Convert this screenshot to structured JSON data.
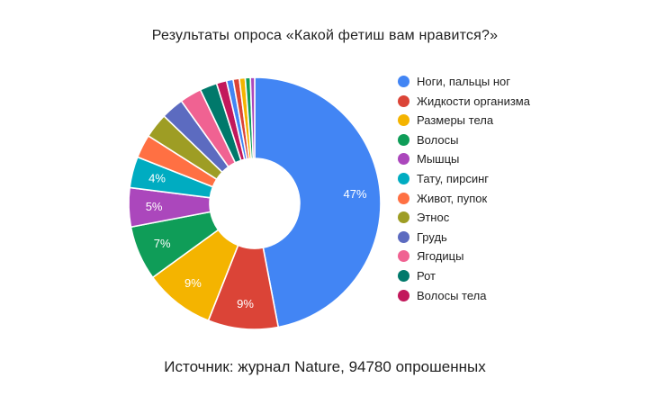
{
  "title": "Результаты опроса «Какой фетиш вам нравится?»",
  "footer": "Источник: журнал Nature, 94780 опрошенных",
  "background_color": "#ffffff",
  "chart_data": {
    "type": "pie",
    "donut": true,
    "title": "Результаты опроса «Какой фетиш вам нравится?»",
    "legend_position": "right",
    "label_format": "percent",
    "labels_shown": [
      "47%",
      "9%",
      "9%",
      "7%",
      "5%",
      "4%"
    ],
    "slices": [
      {
        "label": "Ноги, пальцы ног",
        "value": 47,
        "display": "47%",
        "color": "#4285F4",
        "in_legend": true
      },
      {
        "label": "Жидкости организма",
        "value": 9,
        "display": "9%",
        "color": "#DB4437",
        "in_legend": true
      },
      {
        "label": "Размеры тела",
        "value": 9,
        "display": "9%",
        "color": "#F4B400",
        "in_legend": true
      },
      {
        "label": "Волосы",
        "value": 7,
        "display": "7%",
        "color": "#0F9D58",
        "in_legend": true
      },
      {
        "label": "Мышцы",
        "value": 5,
        "display": "5%",
        "color": "#AB47BC",
        "in_legend": true
      },
      {
        "label": "Тату, пирсинг",
        "value": 4,
        "display": "4%",
        "color": "#00ACC1",
        "in_legend": true
      },
      {
        "label": "Живот, пупок",
        "value": 3,
        "display": "",
        "color": "#FF7043",
        "in_legend": true
      },
      {
        "label": "Этнос",
        "value": 3.2,
        "display": "",
        "color": "#9E9D24",
        "in_legend": true
      },
      {
        "label": "Грудь",
        "value": 2.9,
        "display": "",
        "color": "#5C6BC0",
        "in_legend": true
      },
      {
        "label": "Ягодицы",
        "value": 2.8,
        "display": "",
        "color": "#F06292",
        "in_legend": true
      },
      {
        "label": "Рот",
        "value": 2.2,
        "display": "",
        "color": "#00796B",
        "in_legend": true
      },
      {
        "label": "Волосы тела",
        "value": 1.3,
        "display": "",
        "color": "#C2185B",
        "in_legend": true
      },
      {
        "label": "",
        "value": 0.85,
        "display": "",
        "color": "#4285F4",
        "in_legend": false
      },
      {
        "label": "",
        "value": 0.8,
        "display": "",
        "color": "#DB4437",
        "in_legend": false
      },
      {
        "label": "",
        "value": 0.75,
        "display": "",
        "color": "#F4B400",
        "in_legend": false
      },
      {
        "label": "",
        "value": 0.65,
        "display": "",
        "color": "#0F9D58",
        "in_legend": false
      },
      {
        "label": "",
        "value": 0.55,
        "display": "",
        "color": "#AB47BC",
        "in_legend": false
      }
    ]
  }
}
